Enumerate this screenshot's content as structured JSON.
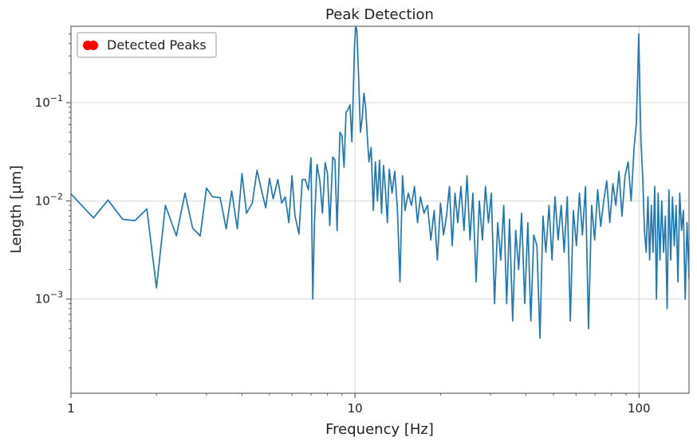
{
  "chart_data": {
    "type": "line",
    "title": "Peak Detection",
    "xlabel": "Frequency [Hz]",
    "ylabel": "Length [µm]",
    "xscale": "log",
    "yscale": "log",
    "xlim": [
      1,
      150
    ],
    "ylim": [
      0.00011,
      0.6
    ],
    "grid": true,
    "legend": {
      "placement": "top-left",
      "entries": [
        {
          "label": "Detected Peaks",
          "marker": "circle",
          "color": "#ff0000"
        }
      ]
    },
    "x_ticks": [
      {
        "value": 1,
        "label": "1"
      },
      {
        "value": 10,
        "label": "10"
      },
      {
        "value": 100,
        "label": "100"
      }
    ],
    "y_ticks": [
      {
        "value": 0.001,
        "base": "10",
        "exp": "−3"
      },
      {
        "value": 0.01,
        "base": "10",
        "exp": "−2"
      },
      {
        "value": 0.1,
        "base": "10",
        "exp": "−1"
      }
    ],
    "series": [
      {
        "color": "#1f77b4",
        "points": [
          [
            1.0,
            0.0118
          ],
          [
            1.2,
            0.0067
          ],
          [
            1.35,
            0.0102
          ],
          [
            1.52,
            0.0065
          ],
          [
            1.68,
            0.0063
          ],
          [
            1.85,
            0.0083
          ],
          [
            2.0,
            0.0013
          ],
          [
            2.15,
            0.009
          ],
          [
            2.35,
            0.0044
          ],
          [
            2.52,
            0.012
          ],
          [
            2.68,
            0.0053
          ],
          [
            2.85,
            0.0044
          ],
          [
            3.0,
            0.0135
          ],
          [
            3.15,
            0.011
          ],
          [
            3.35,
            0.0108
          ],
          [
            3.52,
            0.0052
          ],
          [
            3.68,
            0.0126
          ],
          [
            3.85,
            0.0052
          ],
          [
            4.0,
            0.019
          ],
          [
            4.15,
            0.0075
          ],
          [
            4.35,
            0.0095
          ],
          [
            4.52,
            0.0205
          ],
          [
            4.68,
            0.013
          ],
          [
            4.85,
            0.0085
          ],
          [
            5.0,
            0.017
          ],
          [
            5.15,
            0.0105
          ],
          [
            5.35,
            0.0165
          ],
          [
            5.52,
            0.0095
          ],
          [
            5.68,
            0.011
          ],
          [
            5.85,
            0.006
          ],
          [
            6.0,
            0.018
          ],
          [
            6.15,
            0.007
          ],
          [
            6.35,
            0.0046
          ],
          [
            6.52,
            0.0165
          ],
          [
            6.68,
            0.0165
          ],
          [
            6.85,
            0.013
          ],
          [
            7.0,
            0.0275
          ],
          [
            7.1,
            0.001
          ],
          [
            7.2,
            0.006
          ],
          [
            7.35,
            0.0235
          ],
          [
            7.52,
            0.016
          ],
          [
            7.68,
            0.0075
          ],
          [
            7.85,
            0.0245
          ],
          [
            8.0,
            0.019
          ],
          [
            8.15,
            0.0056
          ],
          [
            8.35,
            0.028
          ],
          [
            8.5,
            0.026
          ],
          [
            8.65,
            0.005
          ],
          [
            8.85,
            0.05
          ],
          [
            9.0,
            0.046
          ],
          [
            9.15,
            0.022
          ],
          [
            9.3,
            0.08
          ],
          [
            9.45,
            0.085
          ],
          [
            9.6,
            0.095
          ],
          [
            9.75,
            0.04
          ],
          [
            9.85,
            0.11
          ],
          [
            9.95,
            0.35
          ],
          [
            10.05,
            0.6
          ],
          [
            10.15,
            0.55
          ],
          [
            10.3,
            0.18
          ],
          [
            10.45,
            0.05
          ],
          [
            10.6,
            0.07
          ],
          [
            10.75,
            0.125
          ],
          [
            10.9,
            0.09
          ],
          [
            11.05,
            0.045
          ],
          [
            11.2,
            0.025
          ],
          [
            11.4,
            0.035
          ],
          [
            11.6,
            0.008
          ],
          [
            11.8,
            0.025
          ],
          [
            12.0,
            0.01
          ],
          [
            12.2,
            0.026
          ],
          [
            12.4,
            0.0075
          ],
          [
            12.6,
            0.023
          ],
          [
            12.8,
            0.013
          ],
          [
            13.0,
            0.006
          ],
          [
            13.2,
            0.021
          ],
          [
            13.5,
            0.012
          ],
          [
            13.8,
            0.02
          ],
          [
            14.1,
            0.0085
          ],
          [
            14.4,
            0.0015
          ],
          [
            14.7,
            0.018
          ],
          [
            15.0,
            0.008
          ],
          [
            15.4,
            0.012
          ],
          [
            15.8,
            0.009
          ],
          [
            16.2,
            0.014
          ],
          [
            16.6,
            0.006
          ],
          [
            17.0,
            0.011
          ],
          [
            17.5,
            0.0075
          ],
          [
            18.0,
            0.009
          ],
          [
            18.5,
            0.004
          ],
          [
            19.0,
            0.008
          ],
          [
            19.5,
            0.0025
          ],
          [
            20.0,
            0.0095
          ],
          [
            20.5,
            0.0045
          ],
          [
            21.0,
            0.007
          ],
          [
            21.5,
            0.014
          ],
          [
            22.0,
            0.0035
          ],
          [
            22.5,
            0.012
          ],
          [
            23.0,
            0.006
          ],
          [
            23.6,
            0.014
          ],
          [
            24.2,
            0.005
          ],
          [
            24.8,
            0.018
          ],
          [
            25.4,
            0.004
          ],
          [
            26.0,
            0.012
          ],
          [
            26.7,
            0.0015
          ],
          [
            27.4,
            0.01
          ],
          [
            28.1,
            0.004
          ],
          [
            28.8,
            0.014
          ],
          [
            29.5,
            0.006
          ],
          [
            30.2,
            0.012
          ],
          [
            31.0,
            0.0009
          ],
          [
            31.8,
            0.006
          ],
          [
            32.6,
            0.0025
          ],
          [
            33.4,
            0.009
          ],
          [
            34.2,
            0.0009
          ],
          [
            35.0,
            0.0065
          ],
          [
            35.9,
            0.0006
          ],
          [
            36.8,
            0.005
          ],
          [
            37.7,
            0.002
          ],
          [
            38.6,
            0.0075
          ],
          [
            39.6,
            0.0009
          ],
          [
            40.6,
            0.006
          ],
          [
            41.6,
            0.0006
          ],
          [
            42.6,
            0.0045
          ],
          [
            43.7,
            0.0035
          ],
          [
            44.8,
            0.0004
          ],
          [
            45.9,
            0.007
          ],
          [
            47.0,
            0.003
          ],
          [
            48.2,
            0.009
          ],
          [
            49.4,
            0.0025
          ],
          [
            50.6,
            0.011
          ],
          [
            51.9,
            0.004
          ],
          [
            53.2,
            0.009
          ],
          [
            54.5,
            0.003
          ],
          [
            55.9,
            0.011
          ],
          [
            57.3,
            0.0006
          ],
          [
            58.7,
            0.008
          ],
          [
            60.2,
            0.0035
          ],
          [
            61.7,
            0.012
          ],
          [
            63.2,
            0.0045
          ],
          [
            64.8,
            0.014
          ],
          [
            66.4,
            0.0005
          ],
          [
            68.1,
            0.009
          ],
          [
            69.8,
            0.004
          ],
          [
            71.5,
            0.013
          ],
          [
            73.3,
            0.0055
          ],
          [
            75.1,
            0.01
          ],
          [
            77.0,
            0.016
          ],
          [
            78.9,
            0.006
          ],
          [
            80.9,
            0.015
          ],
          [
            82.9,
            0.009
          ],
          [
            85.0,
            0.02
          ],
          [
            87.1,
            0.007
          ],
          [
            89.3,
            0.018
          ],
          [
            91.5,
            0.025
          ],
          [
            93.8,
            0.01
          ],
          [
            96.1,
            0.035
          ],
          [
            97.8,
            0.06
          ],
          [
            99.0,
            0.2
          ],
          [
            99.8,
            0.5
          ],
          [
            100.6,
            0.15
          ],
          [
            101.6,
            0.04
          ],
          [
            103.0,
            0.018
          ],
          [
            104.5,
            0.005
          ],
          [
            106.0,
            0.003
          ],
          [
            107.5,
            0.011
          ],
          [
            109.0,
            0.0025
          ],
          [
            110.5,
            0.009
          ],
          [
            112.0,
            0.003
          ],
          [
            113.6,
            0.014
          ],
          [
            115.2,
            0.001
          ],
          [
            116.8,
            0.012
          ],
          [
            118.5,
            0.0025
          ],
          [
            120.2,
            0.01
          ],
          [
            122.0,
            0.003
          ],
          [
            123.8,
            0.007
          ],
          [
            125.6,
            0.0008
          ],
          [
            127.4,
            0.013
          ],
          [
            129.3,
            0.0025
          ],
          [
            131.2,
            0.011
          ],
          [
            133.1,
            0.0035
          ],
          [
            135.1,
            0.009
          ],
          [
            137.1,
            0.0015
          ],
          [
            139.1,
            0.012
          ],
          [
            141.2,
            0.005
          ],
          [
            143.3,
            0.008
          ],
          [
            145.4,
            0.001
          ],
          [
            147.6,
            0.006
          ],
          [
            150.0,
            0.0016
          ]
        ]
      }
    ]
  }
}
